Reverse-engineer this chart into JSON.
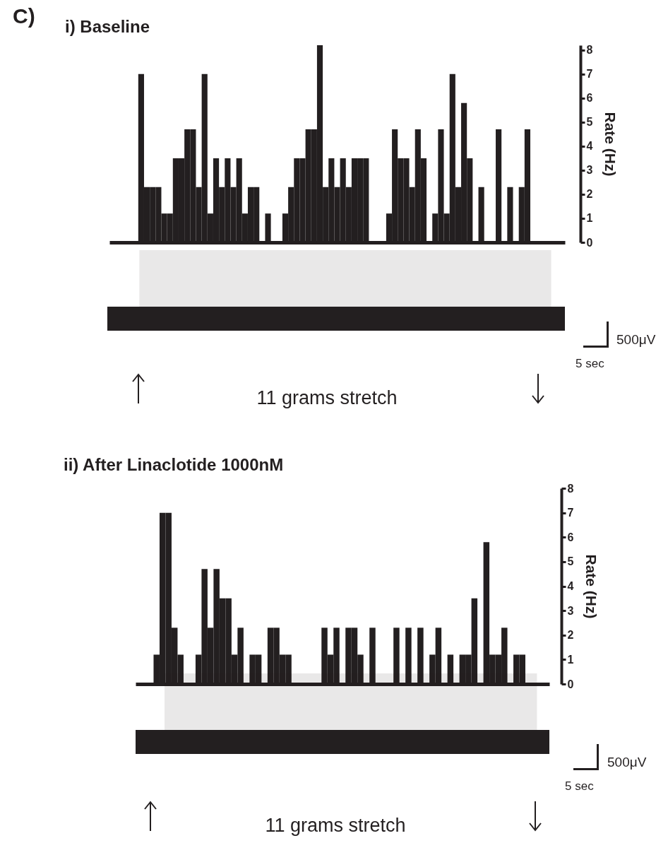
{
  "chart_data": [
    {
      "type": "bar",
      "title": "i)  Baseline",
      "ylabel": "Rate (Hz)",
      "categories": [
        null,
        null,
        null,
        null,
        null,
        null,
        null,
        null,
        null,
        null,
        null,
        null,
        null,
        null,
        null,
        null,
        null,
        null,
        null,
        null,
        null,
        null,
        null,
        null,
        null,
        null,
        null,
        null,
        null,
        null,
        null,
        null,
        null,
        null,
        null,
        null,
        null,
        null,
        null,
        null,
        null,
        null,
        null,
        null,
        null,
        null,
        null,
        null,
        null,
        null,
        null,
        null,
        null,
        null,
        null,
        null,
        null,
        null,
        null,
        null,
        null,
        null,
        null,
        null,
        null,
        null,
        null,
        null,
        null,
        null,
        null,
        null,
        null,
        null,
        null,
        null,
        null,
        null,
        null
      ],
      "values": [
        0,
        0,
        0,
        0,
        0,
        7,
        2.3,
        2.3,
        2.3,
        1.2,
        1.2,
        3.5,
        3.5,
        4.7,
        4.7,
        2.3,
        7,
        1.2,
        3.5,
        2.3,
        3.5,
        2.3,
        3.5,
        1.2,
        2.3,
        2.3,
        0,
        1.2,
        0,
        0,
        1.2,
        2.3,
        3.5,
        3.5,
        4.7,
        4.7,
        8.2,
        2.3,
        3.5,
        2.3,
        3.5,
        2.3,
        3.5,
        3.5,
        3.5,
        0,
        0,
        0,
        1.2,
        4.7,
        3.5,
        3.5,
        2.3,
        4.7,
        3.5,
        0,
        1.2,
        4.7,
        1.2,
        7,
        2.3,
        5.8,
        3.5,
        0,
        2.3,
        0,
        0,
        4.7,
        0,
        2.3,
        0,
        2.3,
        4.7,
        0,
        0,
        0,
        0,
        0,
        0
      ],
      "color": "#231f20",
      "ylim": [
        0,
        8.2
      ],
      "yticks": [
        0,
        1,
        2,
        3,
        4,
        5,
        6,
        7,
        8
      ],
      "grid": false,
      "tick_labels": "y",
      "annotations": [
        "C)",
        "11 grams stretch",
        "500μV",
        "5 sec"
      ]
    },
    {
      "type": "bar",
      "title": "ii)  After Linaclotide 1000nM",
      "ylabel": "Rate (Hz)",
      "categories": [
        null,
        null,
        null,
        null,
        null,
        null,
        null,
        null,
        null,
        null,
        null,
        null,
        null,
        null,
        null,
        null,
        null,
        null,
        null,
        null,
        null,
        null,
        null,
        null,
        null,
        null,
        null,
        null,
        null,
        null,
        null,
        null,
        null,
        null,
        null,
        null,
        null,
        null,
        null,
        null,
        null,
        null,
        null,
        null,
        null,
        null,
        null,
        null,
        null,
        null,
        null,
        null,
        null,
        null,
        null,
        null,
        null,
        null,
        null,
        null,
        null,
        null,
        null,
        null,
        null,
        null,
        null,
        null,
        null
      ],
      "values": [
        0,
        0,
        0,
        1.2,
        7,
        7,
        2.3,
        1.2,
        0,
        0,
        1.2,
        4.7,
        2.3,
        4.7,
        3.5,
        3.5,
        1.2,
        2.3,
        0,
        1.2,
        1.2,
        0,
        2.3,
        2.3,
        1.2,
        1.2,
        0,
        0,
        0,
        0,
        0,
        2.3,
        1.2,
        2.3,
        0,
        2.3,
        2.3,
        1.2,
        0,
        2.3,
        0,
        0,
        0,
        2.3,
        0,
        2.3,
        0,
        2.3,
        0,
        1.2,
        2.3,
        0,
        1.2,
        0,
        1.2,
        1.2,
        3.5,
        0,
        5.8,
        1.2,
        1.2,
        2.3,
        0,
        1.2,
        1.2,
        0,
        0,
        0,
        0
      ],
      "color": "#231f20",
      "ylim": [
        0,
        8
      ],
      "yticks": [
        0,
        1,
        2,
        3,
        4,
        5,
        6,
        7,
        8
      ],
      "grid": false,
      "tick_labels": "y",
      "annotations": [
        "11 grams stretch",
        "500μV",
        "5 sec"
      ]
    }
  ]
}
